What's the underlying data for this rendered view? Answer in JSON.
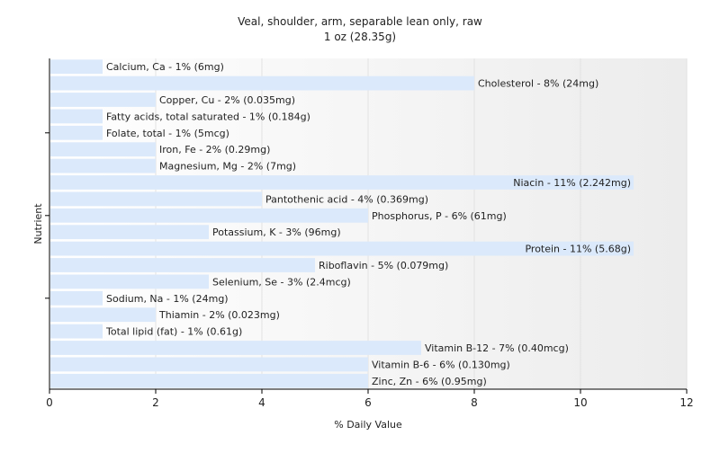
{
  "chart_data": {
    "type": "bar",
    "orientation": "horizontal",
    "title": "Veal, shoulder, arm, separable lean only, raw",
    "subtitle": "1 oz (28.35g)",
    "xlabel": "% Daily Value",
    "ylabel": "Nutrient",
    "xlim": [
      0,
      12
    ],
    "xticks": [
      "0",
      "2",
      "4",
      "6",
      "8",
      "10",
      "12"
    ],
    "grid": true,
    "bar_color": "#dbe9fb",
    "categories": [
      "Calcium, Ca",
      "Cholesterol",
      "Copper, Cu",
      "Fatty acids, total saturated",
      "Folate, total",
      "Iron, Fe",
      "Magnesium, Mg",
      "Niacin",
      "Pantothenic acid",
      "Phosphorus, P",
      "Potassium, K",
      "Protein",
      "Riboflavin",
      "Selenium, Se",
      "Sodium, Na",
      "Thiamin",
      "Total lipid (fat)",
      "Vitamin B-12",
      "Vitamin B-6",
      "Zinc, Zn"
    ],
    "values": [
      1,
      8,
      2,
      1,
      1,
      2,
      2,
      11,
      4,
      6,
      3,
      11,
      5,
      3,
      1,
      2,
      1,
      7,
      6,
      6
    ],
    "labels": [
      "Calcium, Ca - 1% (6mg)",
      "Cholesterol - 8% (24mg)",
      "Copper, Cu - 2% (0.035mg)",
      "Fatty acids, total saturated - 1% (0.184g)",
      "Folate, total - 1% (5mcg)",
      "Iron, Fe - 2% (0.29mg)",
      "Magnesium, Mg - 2% (7mg)",
      "Niacin - 11% (2.242mg)",
      "Pantothenic acid - 4% (0.369mg)",
      "Phosphorus, P - 6% (61mg)",
      "Potassium, K - 3% (96mg)",
      "Protein - 11% (5.68g)",
      "Riboflavin - 5% (0.079mg)",
      "Selenium, Se - 3% (2.4mcg)",
      "Sodium, Na - 1% (24mg)",
      "Thiamin - 2% (0.023mg)",
      "Total lipid (fat) - 1% (0.61g)",
      "Vitamin B-12 - 7% (0.40mcg)",
      "Vitamin B-6 - 6% (0.130mg)",
      "Zinc, Zn - 6% (0.95mg)"
    ]
  }
}
